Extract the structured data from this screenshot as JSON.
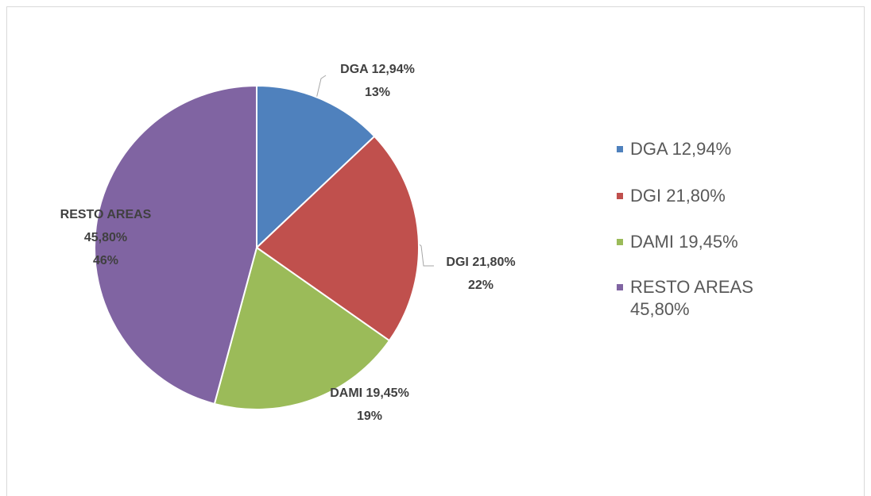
{
  "chart_data": {
    "type": "pie",
    "categories": [
      "DGA 12,94%",
      "DGI 21,80%",
      "DAMI 19,45%",
      "RESTO AREAS 45,80%"
    ],
    "values": [
      12.94,
      21.8,
      19.45,
      45.8
    ],
    "value_labels": [
      "13%",
      "22%",
      "19%",
      "46%"
    ],
    "colors": [
      "#4f81bd",
      "#c0504d",
      "#9bbb59",
      "#8064a2"
    ],
    "legend": "right"
  }
}
